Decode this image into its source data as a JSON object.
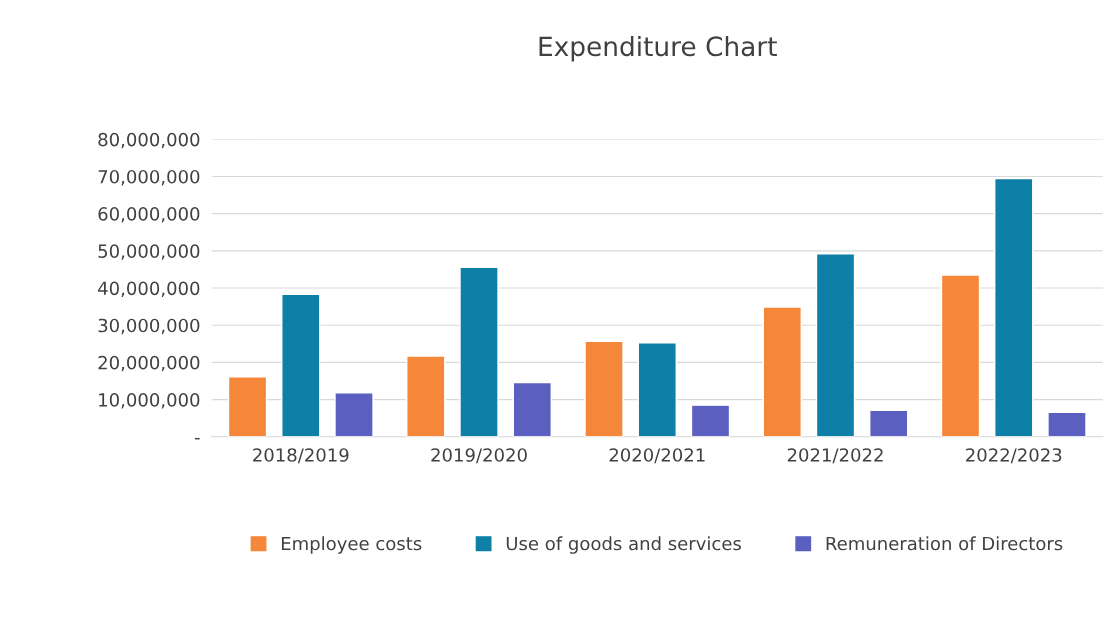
{
  "chart_data": {
    "type": "bar",
    "title": "Expenditure Chart",
    "categories": [
      "2018/2019",
      "2019/2020",
      "2020/2021",
      "2021/2022",
      "2022/2023"
    ],
    "series": [
      {
        "name": "Employee costs",
        "color": "#f5873a",
        "values": [
          16100000,
          21700000,
          25700000,
          34900000,
          43500000
        ]
      },
      {
        "name": "Use of goods and services",
        "color": "#0e7fa6",
        "values": [
          38300000,
          45600000,
          25300000,
          49200000,
          69400000
        ]
      },
      {
        "name": "Remuneration of Directors",
        "color": "#5b5fc0",
        "values": [
          11800000,
          14600000,
          8500000,
          7100000,
          6600000
        ]
      }
    ],
    "ylim": [
      0,
      80000000
    ],
    "yticks": [
      {
        "value": 0,
        "label": "-"
      },
      {
        "value": 10000000,
        "label": "10,000,000"
      },
      {
        "value": 20000000,
        "label": "20,000,000"
      },
      {
        "value": 30000000,
        "label": "30,000,000"
      },
      {
        "value": 40000000,
        "label": "40,000,000"
      },
      {
        "value": 50000000,
        "label": "50,000,000"
      },
      {
        "value": 60000000,
        "label": "60,000,000"
      },
      {
        "value": 70000000,
        "label": "70,000,000"
      },
      {
        "value": 80000000,
        "label": "80,000,000"
      }
    ],
    "grid": "y",
    "legend": "bottom"
  }
}
